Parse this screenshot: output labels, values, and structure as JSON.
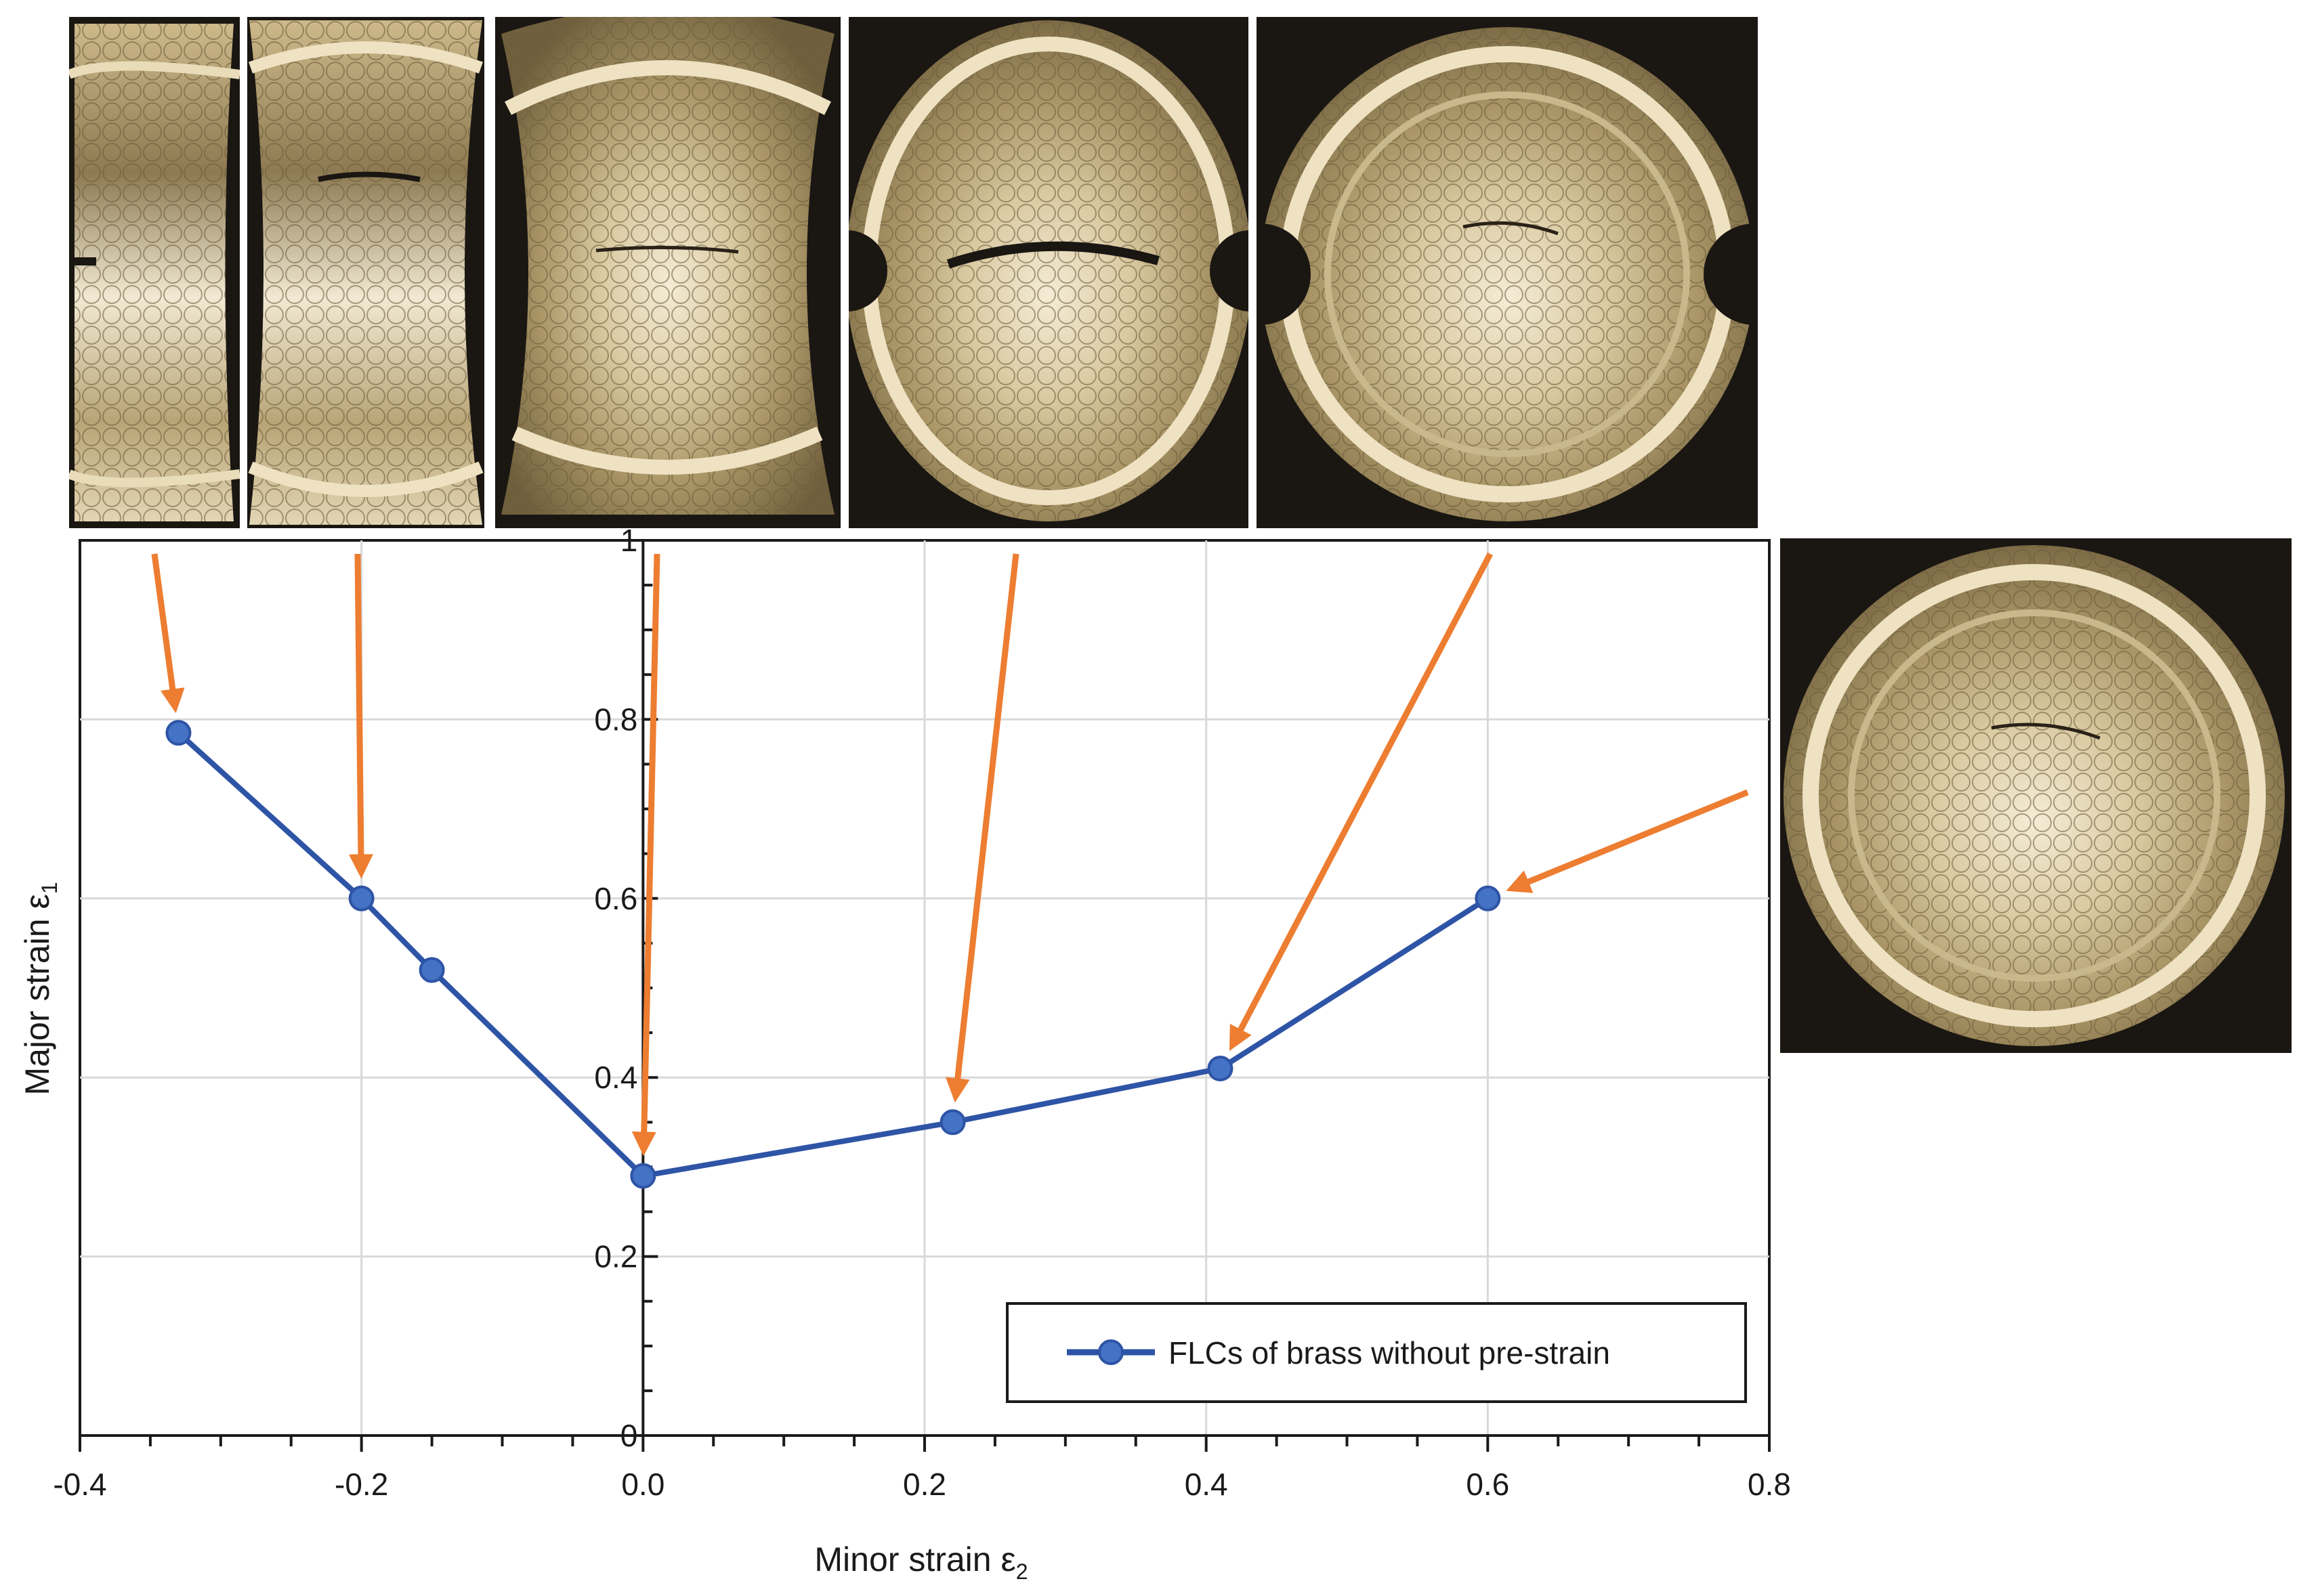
{
  "chart_data": {
    "type": "line",
    "title": "",
    "xlabel": "Minor strain ε",
    "xlabel_sub": "2",
    "ylabel": "Major strain ε",
    "ylabel_sub": "1",
    "xlim": [
      -0.4,
      0.8
    ],
    "ylim": [
      0,
      1
    ],
    "x_ticks": [
      -0.4,
      -0.2,
      0.0,
      0.2,
      0.4,
      0.6,
      0.8
    ],
    "x_tick_labels": [
      "-0.4",
      "-0.2",
      "0.0",
      "0.2",
      "0.4",
      "0.6",
      "0.8"
    ],
    "y_ticks": [
      0,
      0.2,
      0.4,
      0.6,
      0.8,
      1
    ],
    "y_tick_labels": [
      "0",
      "0.2",
      "0.4",
      "0.6",
      "0.8",
      "1"
    ],
    "grid": true,
    "legend_position": "bottom-right",
    "series": [
      {
        "name": "FLCs of brass without pre-strain",
        "color": "#2e54a6",
        "marker_color": "#4472c4",
        "x": [
          -0.33,
          -0.2,
          -0.15,
          0.0,
          0.22,
          0.41,
          0.6
        ],
        "y": [
          0.785,
          0.6,
          0.52,
          0.29,
          0.35,
          0.41,
          0.6
        ]
      }
    ],
    "annotations": {
      "arrow_color": "#ed7d31",
      "arrow_targets": [
        {
          "x": -0.33,
          "y": 0.785
        },
        {
          "x": -0.2,
          "y": 0.6
        },
        {
          "x": 0.0,
          "y": 0.29
        },
        {
          "x": 0.22,
          "y": 0.35
        },
        {
          "x": 0.41,
          "y": 0.41
        },
        {
          "x": 0.6,
          "y": 0.6
        }
      ]
    },
    "specimen_photos": [
      "specimen-1",
      "specimen-2",
      "specimen-3",
      "specimen-4",
      "specimen-5",
      "specimen-6"
    ]
  }
}
